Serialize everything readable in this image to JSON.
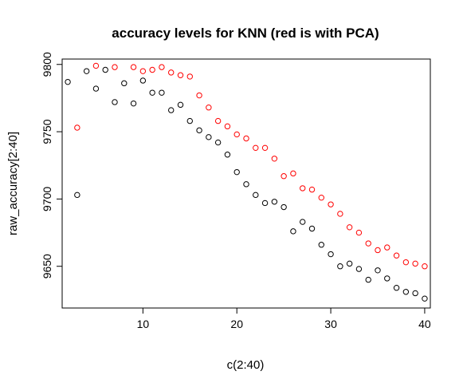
{
  "chart_data": {
    "type": "scatter",
    "title": "accuracy levels for KNN (red is with PCA)",
    "xlabel": "c(2:40)",
    "ylabel": "raw_accuracy[2:40]",
    "xlim": [
      1.4,
      40.6
    ],
    "ylim": [
      9619,
      9804
    ],
    "grid": false,
    "x_ticks": [
      10,
      20,
      30,
      40
    ],
    "y_ticks": [
      9650,
      9700,
      9750,
      9800
    ],
    "x": [
      2,
      3,
      4,
      5,
      6,
      7,
      8,
      9,
      10,
      11,
      12,
      13,
      14,
      15,
      16,
      17,
      18,
      19,
      20,
      21,
      22,
      23,
      24,
      25,
      26,
      27,
      28,
      29,
      30,
      31,
      32,
      33,
      34,
      35,
      36,
      37,
      38,
      39,
      40
    ],
    "series": [
      {
        "color": "#000000",
        "values": [
          9787,
          9703,
          9795,
          9782,
          9796,
          9772,
          9786,
          9771,
          9788,
          9779,
          9779,
          9766,
          9770,
          9758,
          9751,
          9746,
          9742,
          9733,
          9720,
          9711,
          9703,
          9697,
          9698,
          9694,
          9676,
          9683,
          9678,
          9666,
          9659,
          9650,
          9652,
          9648,
          9640,
          9647,
          9641,
          9634,
          9631,
          9630,
          9626
        ]
      },
      {
        "color": "#ff0000",
        "values": [
          null,
          9753,
          null,
          9799,
          null,
          9798,
          null,
          9798,
          9795,
          9796,
          9798,
          9794,
          9792,
          9791,
          9777,
          9768,
          9758,
          9754,
          9748,
          9745,
          9738,
          9738,
          9730,
          9717,
          9719,
          9708,
          9707,
          9701,
          9696,
          9689,
          9679,
          9675,
          9667,
          9662,
          9664,
          9658,
          9653,
          9652,
          9650
        ]
      }
    ]
  }
}
